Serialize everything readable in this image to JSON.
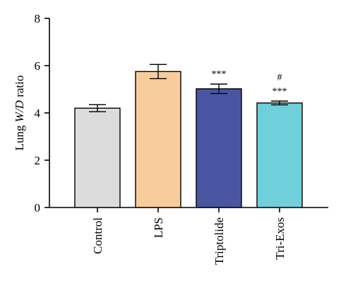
{
  "chart_data": {
    "type": "bar",
    "categories": [
      "Control",
      "LPS",
      "Triptolide",
      "Tri-Exos"
    ],
    "values": [
      4.2,
      5.75,
      5.02,
      4.42
    ],
    "errors": [
      0.15,
      0.3,
      0.2,
      0.08
    ],
    "colors": [
      "#dcdcdc",
      "#f9cc9c",
      "#4a55a2",
      "#6fcfdb"
    ],
    "annotations": [
      [],
      [],
      [
        "***"
      ],
      [
        "***",
        "#"
      ]
    ],
    "ylabel": {
      "prefix": "Lung ",
      "italic": "W/D",
      "suffix": " ratio"
    },
    "ylim": [
      0,
      8
    ],
    "yticks": [
      0,
      2,
      4,
      6,
      8
    ],
    "grid": false
  }
}
